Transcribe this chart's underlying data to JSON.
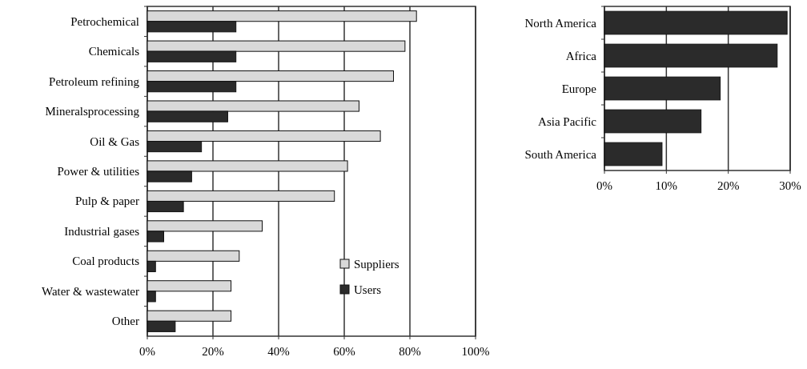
{
  "chart_data": [
    {
      "type": "bar",
      "orientation": "horizontal",
      "categories": [
        "Petrochemical",
        "Chemicals",
        "Petroleum refining",
        "Mineralsprocessing",
        "Oil & Gas",
        "Power & utilities",
        "Pulp & paper",
        "Industrial gases",
        "Coal products",
        "Water & wastewater",
        "Other"
      ],
      "series": [
        {
          "name": "Suppliers",
          "color": "#d9d9d9",
          "values": [
            82,
            78.5,
            75,
            64.5,
            71,
            61,
            57,
            35,
            28,
            25.5,
            25.5
          ]
        },
        {
          "name": "Users",
          "color": "#2b2b2b",
          "values": [
            27,
            27,
            27,
            24.5,
            16.5,
            13.5,
            11,
            5,
            2.5,
            2.5,
            8.5
          ]
        }
      ],
      "xlim": [
        0,
        100
      ],
      "xticks": [
        {
          "value": 0,
          "label": "0%"
        },
        {
          "value": 20,
          "label": "20%"
        },
        {
          "value": 40,
          "label": "40%"
        },
        {
          "value": 60,
          "label": "60%"
        },
        {
          "value": 80,
          "label": "80%"
        },
        {
          "value": 100,
          "label": "100%"
        }
      ],
      "grid": "x",
      "legend": "bottom right"
    },
    {
      "type": "bar",
      "orientation": "horizontal",
      "categories": [
        "North America",
        "Africa",
        "Europe",
        "Asia Pacific",
        "South America"
      ],
      "series": [
        {
          "color": "#2b2b2b",
          "values": [
            29.5,
            27.9,
            18.7,
            15.6,
            9.3
          ]
        }
      ],
      "xlim": [
        0,
        30
      ],
      "xticks": [
        {
          "value": 0,
          "label": "0%"
        },
        {
          "value": 10,
          "label": "10%"
        },
        {
          "value": 20,
          "label": "20%"
        },
        {
          "value": 30,
          "label": "30%"
        }
      ],
      "grid": "x"
    }
  ]
}
